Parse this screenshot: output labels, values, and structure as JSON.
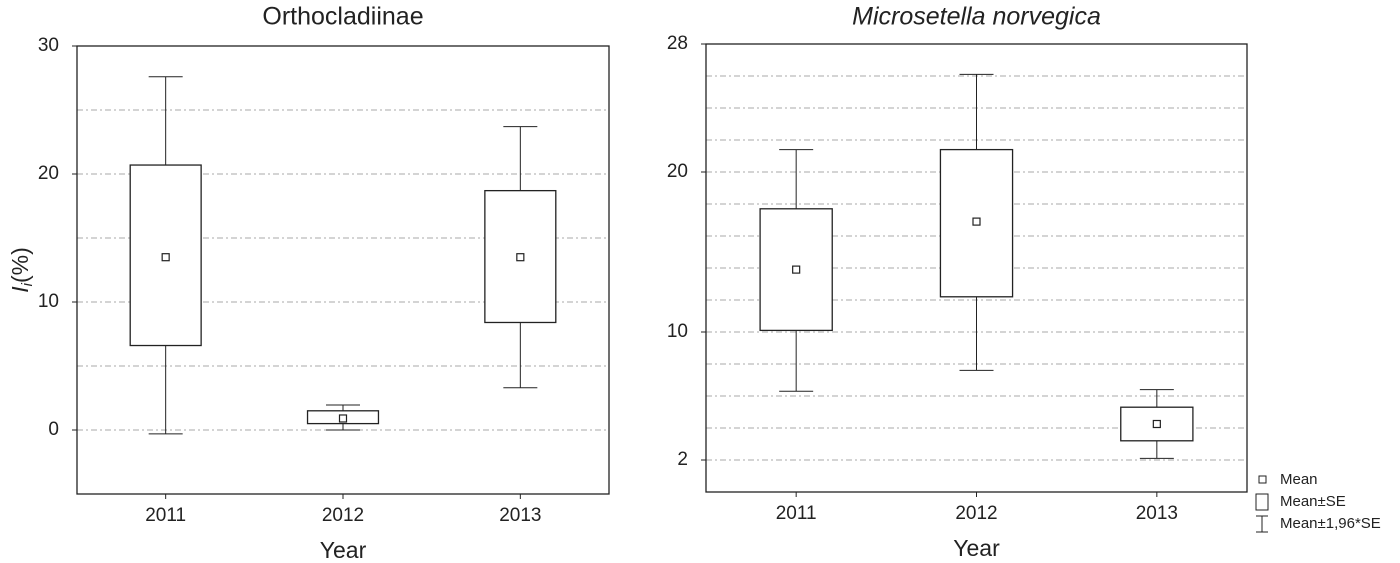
{
  "chart_data": [
    {
      "type": "box",
      "title": "Orthocladiinae",
      "title_italic": false,
      "x_label": "Year",
      "y_label": {
        "main": "I",
        "sub": "i",
        "suffix": "(%)"
      },
      "categories": [
        "2011",
        "2012",
        "2013"
      ],
      "stats": {
        "mean": [
          13.5,
          0.9,
          13.5
        ],
        "se_low": [
          6.6,
          0.5,
          8.4
        ],
        "se_high": [
          20.7,
          1.5,
          18.7
        ],
        "ci_low": [
          -0.3,
          0,
          3.3
        ],
        "ci_high": [
          27.6,
          1.95,
          23.7
        ]
      },
      "ylim": [
        -5,
        30
      ],
      "yticks": [
        0,
        10,
        20,
        30
      ],
      "ygrid": [
        0,
        5,
        10,
        15,
        20,
        25
      ],
      "grid": true
    },
    {
      "type": "box",
      "title": "Microsetella norvegica",
      "title_italic": true,
      "x_label": "Year",
      "categories": [
        "2011",
        "2012",
        "2013"
      ],
      "stats": {
        "mean": [
          13.9,
          16.9,
          4.25
        ],
        "se_low": [
          10.1,
          12.2,
          3.2
        ],
        "se_high": [
          17.7,
          21.4,
          5.3
        ],
        "ci_low": [
          6.3,
          7.6,
          2.1
        ],
        "ci_high": [
          21.4,
          26.1,
          6.4
        ]
      },
      "ylim": [
        0,
        28
      ],
      "yticks": [
        2,
        10,
        20,
        28
      ],
      "ygrid": [
        2,
        4,
        6,
        8,
        10,
        12,
        14,
        16,
        18,
        20,
        22,
        24,
        26
      ],
      "grid": true,
      "legend": [
        "Mean",
        "Mean±SE",
        "Mean±1,96*SE"
      ]
    }
  ]
}
